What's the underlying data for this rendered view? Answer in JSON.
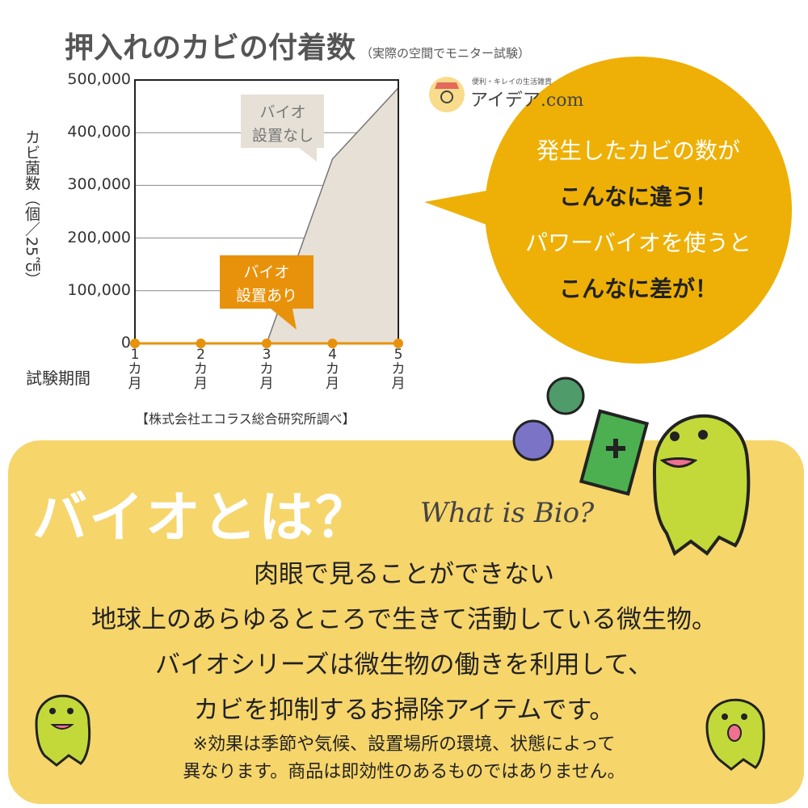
{
  "header": {
    "title": "押入れのカビの付着数",
    "subtitle": "（実際の空間でモニター試験）"
  },
  "chart_data": {
    "type": "area",
    "title": "押入れのカビの付着数",
    "ylabel": "カビ菌数（個／25㎠）",
    "xlabel": "試験期間",
    "ylim": [
      0,
      500000
    ],
    "yticks": [
      "500,000",
      "400,000",
      "300,000",
      "200,000",
      "100,000",
      "0"
    ],
    "categories": [
      "1",
      "2",
      "3",
      "4",
      "5"
    ],
    "category_unit": [
      "カ",
      "月"
    ],
    "grid": true,
    "series": [
      {
        "name": "バイオ設置なし",
        "line1": "バイオ",
        "line2": "設置なし",
        "values": [
          0,
          0,
          0,
          350000,
          485000
        ],
        "color": "#e6e0d6"
      },
      {
        "name": "バイオ設置あり",
        "line1": "バイオ",
        "line2": "設置あり",
        "values": [
          0,
          0,
          0,
          0,
          0
        ],
        "color": "#e8920c"
      }
    ],
    "source": "【株式会社エコラス総合研究所調べ】"
  },
  "logo": {
    "tagline": "便利・キレイの生活雑貨",
    "name": "アイデア.com"
  },
  "bubble": {
    "lines": [
      "発生したカビの数が",
      "こんなに違う！",
      "パワーバイオを使うと",
      "こんなに差が！"
    ],
    "color": "#eeb006"
  },
  "panel": {
    "heading": "バイオとは？",
    "subheading": "What is Bio?",
    "body": [
      "肉眼で見ることができない",
      "地球上のあらゆるところで生きて活動している微生物。",
      "バイオシリーズは微生物の働きを利用して、",
      "カビを抑制するお掃除アイテムです。"
    ],
    "note": [
      "※効果は季節や気候、設置場所の環境、状態によって",
      "異なります。商品は即効性のあるものではありません。"
    ],
    "color": "#f6d56b"
  }
}
